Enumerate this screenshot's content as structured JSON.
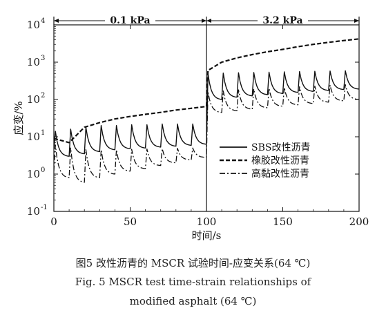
{
  "chart_data": {
    "type": "line",
    "xlabel": "时间/s",
    "ylabel": "应变/%",
    "xlim": [
      0,
      200
    ],
    "ylim": [
      0.1,
      10000
    ],
    "yscale": "log",
    "x_ticks": [
      "0",
      "50",
      "100",
      "150",
      "200"
    ],
    "y_ticks": [
      {
        "base": "10",
        "exp": "-1"
      },
      {
        "base": "10",
        "exp": "0"
      },
      {
        "base": "10",
        "exp": "1"
      },
      {
        "base": "10",
        "exp": "2"
      },
      {
        "base": "10",
        "exp": "3"
      },
      {
        "base": "10",
        "exp": "4"
      }
    ],
    "regions": [
      {
        "label": "0.1 kPa",
        "x_start": 0,
        "x_end": 100
      },
      {
        "label": "3.2 kPa",
        "x_start": 100,
        "x_end": 200
      }
    ],
    "legend_position": "right",
    "series": [
      {
        "name": "SBS改性沥青",
        "style": "solid",
        "color": "#111111",
        "cycles": [
          {
            "peak": 14,
            "trough": 3.0
          },
          {
            "peak": 16,
            "trough": 3.5
          },
          {
            "peak": 18,
            "trough": 4.0
          },
          {
            "peak": 20,
            "trough": 4.5
          },
          {
            "peak": 20,
            "trough": 4.8
          },
          {
            "peak": 21,
            "trough": 5.0
          },
          {
            "peak": 21,
            "trough": 5.3
          },
          {
            "peak": 22,
            "trough": 5.6
          },
          {
            "peak": 22,
            "trough": 5.9
          },
          {
            "peak": 22,
            "trough": 6.3
          },
          {
            "peak": 500,
            "trough": 100
          },
          {
            "peak": 510,
            "trough": 115
          },
          {
            "peak": 520,
            "trough": 125
          },
          {
            "peak": 530,
            "trough": 135
          },
          {
            "peak": 540,
            "trough": 145
          },
          {
            "peak": 550,
            "trough": 155
          },
          {
            "peak": 560,
            "trough": 165
          },
          {
            "peak": 570,
            "trough": 175
          },
          {
            "peak": 580,
            "trough": 185
          },
          {
            "peak": 590,
            "trough": 190
          }
        ]
      },
      {
        "name": "橡胶改性沥青",
        "style": "dashed",
        "color": "#111111",
        "points": [
          {
            "x": 0,
            "y": 9
          },
          {
            "x": 10,
            "y": 7
          },
          {
            "x": 20,
            "y": 18
          },
          {
            "x": 30,
            "y": 24
          },
          {
            "x": 40,
            "y": 30
          },
          {
            "x": 50,
            "y": 35
          },
          {
            "x": 60,
            "y": 40
          },
          {
            "x": 70,
            "y": 45
          },
          {
            "x": 80,
            "y": 52
          },
          {
            "x": 90,
            "y": 58
          },
          {
            "x": 100,
            "y": 65
          },
          {
            "x": 101,
            "y": 600
          },
          {
            "x": 110,
            "y": 1000
          },
          {
            "x": 120,
            "y": 1300
          },
          {
            "x": 130,
            "y": 1600
          },
          {
            "x": 140,
            "y": 1900
          },
          {
            "x": 150,
            "y": 2200
          },
          {
            "x": 160,
            "y": 2600
          },
          {
            "x": 170,
            "y": 3000
          },
          {
            "x": 180,
            "y": 3400
          },
          {
            "x": 190,
            "y": 3800
          },
          {
            "x": 200,
            "y": 4200
          }
        ]
      },
      {
        "name": "高黏改性沥青",
        "style": "dash-dot",
        "color": "#111111",
        "cycles": [
          {
            "peak": 6,
            "trough": 0.8
          },
          {
            "peak": 5,
            "trough": 0.6
          },
          {
            "peak": 4.5,
            "trough": 0.8
          },
          {
            "peak": 4.5,
            "trough": 1.0
          },
          {
            "peak": 4.5,
            "trough": 1.2
          },
          {
            "peak": 4.6,
            "trough": 1.4
          },
          {
            "peak": 4.7,
            "trough": 1.7
          },
          {
            "peak": 4.8,
            "trough": 2.0
          },
          {
            "peak": 4.9,
            "trough": 2.4
          },
          {
            "peak": 5.0,
            "trough": 2.8
          },
          {
            "peak": 160,
            "trough": 45
          },
          {
            "peak": 170,
            "trough": 50
          },
          {
            "peak": 180,
            "trough": 55
          },
          {
            "peak": 190,
            "trough": 60
          },
          {
            "peak": 200,
            "trough": 66
          },
          {
            "peak": 210,
            "trough": 72
          },
          {
            "peak": 220,
            "trough": 78
          },
          {
            "peak": 230,
            "trough": 85
          },
          {
            "peak": 240,
            "trough": 92
          },
          {
            "peak": 250,
            "trough": 100
          }
        ]
      }
    ]
  },
  "caption": {
    "zh": "图5   改性沥青的 MSCR 试验时间-应变关系(64 ℃)",
    "en_line1": "Fig. 5   MSCR test time-strain relationships of",
    "en_line2": "modified asphalt (64 ℃)"
  }
}
